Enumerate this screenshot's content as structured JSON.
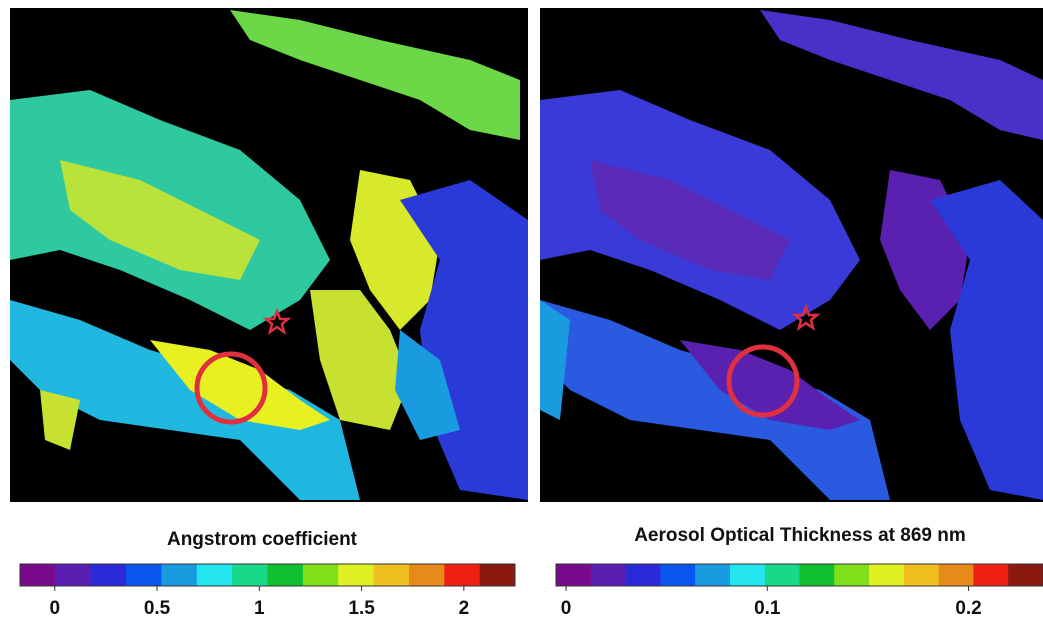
{
  "panels": [
    {
      "colorbar": {
        "title": "Angstrom coefficient",
        "lim": [
          -0.17,
          2.25
        ],
        "ticks": [
          0,
          0.5,
          1,
          1.5,
          2
        ]
      }
    },
    {
      "colorbar": {
        "title": "Aerosol Optical Thickness at 869 nm",
        "lim": [
          -0.005,
          0.237
        ],
        "ticks": [
          0,
          0.1,
          0.2
        ]
      }
    }
  ],
  "colormap": [
    "#7a0a8c",
    "#5a1fb0",
    "#2a2ad8",
    "#0a55f0",
    "#1a9be0",
    "#22e5f0",
    "#18d88a",
    "#10c030",
    "#7fe01a",
    "#e0f020",
    "#f0c020",
    "#e88a1a",
    "#f02010",
    "#8a1a10"
  ]
}
